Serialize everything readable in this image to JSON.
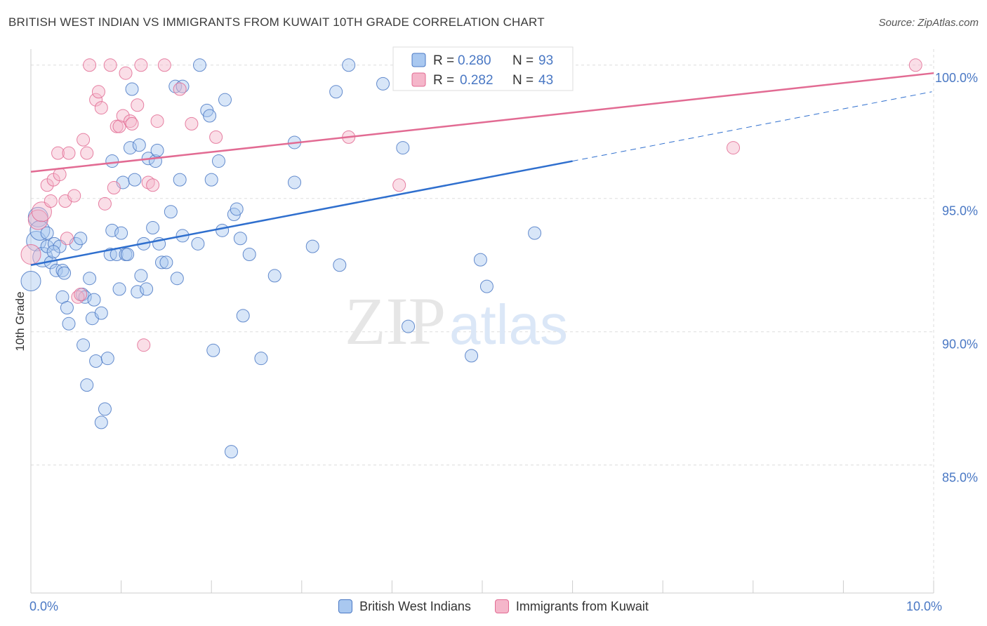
{
  "header": {
    "title": "BRITISH WEST INDIAN VS IMMIGRANTS FROM KUWAIT 10TH GRADE CORRELATION CHART",
    "source_label": "Source:",
    "source_value": "ZipAtlas.com"
  },
  "watermark": {
    "part1": "ZIP",
    "part2": "atlas"
  },
  "colors": {
    "blue": "#4a78c4",
    "blue_fill": "#a9c8f0",
    "blue_line": "#2f6fce",
    "pink": "#e26b93",
    "pink_fill": "#f5b6ca",
    "grid": "#dddddd",
    "axis_text": "#4a78c4"
  },
  "stats": [
    {
      "r_label": "R =",
      "r_value": "0.280",
      "n_label": "N =",
      "n_value": "93"
    },
    {
      "r_label": "R =",
      "r_value": "0.282",
      "n_label": "N =",
      "n_value": "43"
    }
  ],
  "chart_data": {
    "type": "scatter",
    "title": "BRITISH WEST INDIAN VS IMMIGRANTS FROM KUWAIT 10TH GRADE CORRELATION CHART",
    "xlabel": "",
    "ylabel": "10th Grade",
    "xlim": [
      0,
      10
    ],
    "ylim": [
      80.2,
      100.6
    ],
    "x_ticks": [
      0,
      10
    ],
    "x_tick_labels": [
      "0.0%",
      "10.0%"
    ],
    "y_ticks": [
      85,
      90,
      95,
      100
    ],
    "y_tick_labels": [
      "85.0%",
      "90.0%",
      "95.0%",
      "100.0%"
    ],
    "grid": true,
    "legend_position": "bottom",
    "series": [
      {
        "name": "British West Indians",
        "trend": {
          "x_start": 0,
          "y_start": 92.5,
          "x_solid_end": 6.0,
          "y_solid_end": 96.4,
          "x_dash_end": 9.98,
          "y_dash_end": 99.0
        },
        "points": [
          [
            0.0,
            91.9
          ],
          [
            0.06,
            93.4
          ],
          [
            0.08,
            94.3
          ],
          [
            0.1,
            93.8
          ],
          [
            0.13,
            92.8
          ],
          [
            0.18,
            93.7
          ],
          [
            0.18,
            93.2
          ],
          [
            0.22,
            92.6
          ],
          [
            0.26,
            93.3
          ],
          [
            0.28,
            92.3
          ],
          [
            0.32,
            93.2
          ],
          [
            0.35,
            92.3
          ],
          [
            0.37,
            92.2
          ],
          [
            0.35,
            91.3
          ],
          [
            0.4,
            90.9
          ],
          [
            0.42,
            90.3
          ],
          [
            0.5,
            93.3
          ],
          [
            0.55,
            93.5
          ],
          [
            0.57,
            91.4
          ],
          [
            0.6,
            91.3
          ],
          [
            0.58,
            89.5
          ],
          [
            0.62,
            88.0
          ],
          [
            0.65,
            92.0
          ],
          [
            0.68,
            90.5
          ],
          [
            0.7,
            91.2
          ],
          [
            0.72,
            88.9
          ],
          [
            0.78,
            90.7
          ],
          [
            0.82,
            87.1
          ],
          [
            0.78,
            86.6
          ],
          [
            0.85,
            89.0
          ],
          [
            0.88,
            92.9
          ],
          [
            0.9,
            93.8
          ],
          [
            0.9,
            96.4
          ],
          [
            0.95,
            92.9
          ],
          [
            0.98,
            91.6
          ],
          [
            1.0,
            93.7
          ],
          [
            1.02,
            95.6
          ],
          [
            1.05,
            92.9
          ],
          [
            1.07,
            92.9
          ],
          [
            1.1,
            96.9
          ],
          [
            1.12,
            99.1
          ],
          [
            1.15,
            95.7
          ],
          [
            1.18,
            91.5
          ],
          [
            1.2,
            97.0
          ],
          [
            1.22,
            92.1
          ],
          [
            1.25,
            93.3
          ],
          [
            1.28,
            91.6
          ],
          [
            1.3,
            96.5
          ],
          [
            1.35,
            93.9
          ],
          [
            1.38,
            96.4
          ],
          [
            1.4,
            96.8
          ],
          [
            1.42,
            93.3
          ],
          [
            1.45,
            92.6
          ],
          [
            1.5,
            92.6
          ],
          [
            1.55,
            94.5
          ],
          [
            1.6,
            99.2
          ],
          [
            1.62,
            92.0
          ],
          [
            1.65,
            95.7
          ],
          [
            1.68,
            93.6
          ],
          [
            1.85,
            93.3
          ],
          [
            1.87,
            100.0
          ],
          [
            1.95,
            98.3
          ],
          [
            1.98,
            98.1
          ],
          [
            2.0,
            95.7
          ],
          [
            2.02,
            89.3
          ],
          [
            2.08,
            96.4
          ],
          [
            2.12,
            93.8
          ],
          [
            2.15,
            98.7
          ],
          [
            2.22,
            85.5
          ],
          [
            2.25,
            94.4
          ],
          [
            2.28,
            94.6
          ],
          [
            2.32,
            93.5
          ],
          [
            2.35,
            90.6
          ],
          [
            2.42,
            92.9
          ],
          [
            2.55,
            89.0
          ],
          [
            2.7,
            92.1
          ],
          [
            2.92,
            97.1
          ],
          [
            2.92,
            95.6
          ],
          [
            3.12,
            93.2
          ],
          [
            3.38,
            99.0
          ],
          [
            3.42,
            92.5
          ],
          [
            3.52,
            100.0
          ],
          [
            3.9,
            99.3
          ],
          [
            4.12,
            96.9
          ],
          [
            4.18,
            90.2
          ],
          [
            4.88,
            89.1
          ],
          [
            4.98,
            92.7
          ],
          [
            5.05,
            91.7
          ],
          [
            5.1,
            100.0
          ],
          [
            5.45,
            99.3
          ],
          [
            5.58,
            93.7
          ],
          [
            0.25,
            93.0
          ],
          [
            1.68,
            99.2
          ]
        ]
      },
      {
        "name": "Immigrants from Kuwait",
        "trend": {
          "x_start": 0,
          "y_start": 96.0,
          "x_end": 10.0,
          "y_end": 99.7
        },
        "points": [
          [
            0.0,
            92.9
          ],
          [
            0.08,
            94.2
          ],
          [
            0.12,
            94.5
          ],
          [
            0.18,
            95.5
          ],
          [
            0.22,
            94.9
          ],
          [
            0.25,
            95.7
          ],
          [
            0.3,
            96.7
          ],
          [
            0.32,
            95.9
          ],
          [
            0.38,
            94.9
          ],
          [
            0.4,
            93.5
          ],
          [
            0.42,
            96.7
          ],
          [
            0.48,
            95.1
          ],
          [
            0.52,
            91.3
          ],
          [
            0.55,
            91.4
          ],
          [
            0.58,
            97.2
          ],
          [
            0.62,
            96.7
          ],
          [
            0.65,
            100.0
          ],
          [
            0.72,
            98.7
          ],
          [
            0.75,
            99.0
          ],
          [
            0.78,
            98.4
          ],
          [
            0.82,
            94.8
          ],
          [
            0.88,
            100.0
          ],
          [
            0.92,
            95.4
          ],
          [
            0.95,
            97.7
          ],
          [
            0.98,
            97.7
          ],
          [
            1.02,
            98.1
          ],
          [
            1.05,
            99.7
          ],
          [
            1.1,
            97.9
          ],
          [
            1.12,
            97.8
          ],
          [
            1.18,
            98.5
          ],
          [
            1.22,
            100.0
          ],
          [
            1.25,
            89.5
          ],
          [
            1.3,
            95.6
          ],
          [
            1.35,
            95.5
          ],
          [
            1.4,
            97.9
          ],
          [
            1.48,
            100.0
          ],
          [
            1.65,
            99.1
          ],
          [
            1.78,
            97.8
          ],
          [
            2.05,
            97.3
          ],
          [
            3.52,
            97.3
          ],
          [
            4.08,
            95.5
          ],
          [
            7.78,
            96.9
          ],
          [
            9.8,
            100.0
          ]
        ]
      }
    ]
  }
}
